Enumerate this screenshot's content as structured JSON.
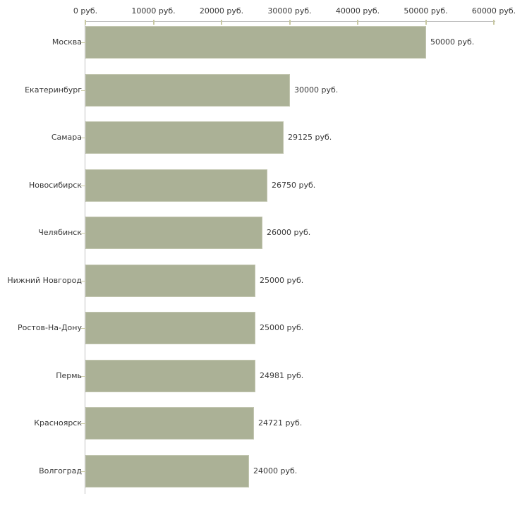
{
  "chart_data": {
    "type": "bar",
    "orientation": "horizontal",
    "categories": [
      "Москва",
      "Екатеринбург",
      "Самара",
      "Новосибирск",
      "Челябинск",
      "Нижний Новгород",
      "Ростов-На-Дону",
      "Пермь",
      "Красноярск",
      "Волгоград"
    ],
    "values": [
      50000,
      30000,
      29125,
      26750,
      26000,
      25000,
      25000,
      24981,
      24721,
      24000
    ],
    "value_labels": [
      "50000 руб.",
      "30000 руб.",
      "29125 руб.",
      "26750 руб.",
      "26000 руб.",
      "25000 руб.",
      "25000 руб.",
      "24981 руб.",
      "24721 руб.",
      "24000 руб."
    ],
    "x_ticks": [
      0,
      10000,
      20000,
      30000,
      40000,
      50000,
      60000
    ],
    "x_tick_labels": [
      "0 руб.",
      "10000 руб.",
      "20000 руб.",
      "30000 руб.",
      "40000 руб.",
      "50000 руб.",
      "60000 руб."
    ],
    "xlim": [
      0,
      60000
    ],
    "unit": "руб.",
    "grid": false,
    "legend": "none",
    "colors": {
      "bar_fill": "#ABB196",
      "bar_border": "#C2C6B0",
      "axis_line": "#C0C0C0",
      "tick_mark": "#C9C9A3",
      "text": "#383838",
      "background": "#FFFFFF"
    }
  }
}
